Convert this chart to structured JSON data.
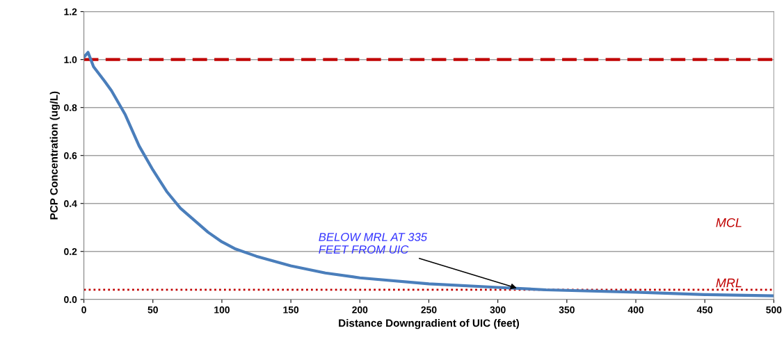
{
  "chart_data": {
    "type": "line",
    "xlabel": "Distance Downgradient of UIC (feet)",
    "ylabel": "PCP Concentration (ug/L)",
    "x": [
      0,
      3,
      7,
      15,
      20,
      30,
      40,
      50,
      60,
      70,
      80,
      90,
      100,
      110,
      125,
      150,
      175,
      200,
      250,
      300,
      335,
      400,
      450,
      500
    ],
    "series": [
      {
        "color": "#4a7ebb",
        "values": [
          1.01,
          1.03,
          0.97,
          0.91,
          0.87,
          0.77,
          0.64,
          0.54,
          0.45,
          0.38,
          0.33,
          0.28,
          0.24,
          0.21,
          0.18,
          0.14,
          0.11,
          0.09,
          0.065,
          0.05,
          0.04,
          0.03,
          0.02,
          0.015
        ]
      }
    ],
    "xlim": [
      0,
      500
    ],
    "xticks": [
      0,
      50,
      100,
      150,
      200,
      250,
      300,
      350,
      400,
      450,
      500
    ],
    "ylim": [
      0,
      1.2
    ],
    "yticks": [
      {
        "value": 0,
        "label": "0.0"
      },
      {
        "value": 0.2,
        "label": "0.2"
      },
      {
        "value": 0.4,
        "label": "0.4"
      },
      {
        "value": 0.6,
        "label": "0.6"
      },
      {
        "value": 0.8,
        "label": "0.8"
      },
      {
        "value": 1.0,
        "label": "1.0"
      },
      {
        "value": 1.2,
        "label": "1.2"
      }
    ],
    "grid": "y",
    "marker": "none",
    "line_style": "solid",
    "ref_lines": [
      {
        "axis": "y",
        "value": 1.0,
        "label": "MCL",
        "color": "#c00000",
        "line_style": "dashed"
      },
      {
        "axis": "y",
        "value": 0.04,
        "label": "MRL",
        "color": "#c00000",
        "line_style": "dotted"
      }
    ],
    "annotations": [
      {
        "text": "BELOW MRL AT 335\nFEET FROM UIC",
        "x": 315,
        "y": 0.045
      }
    ]
  }
}
